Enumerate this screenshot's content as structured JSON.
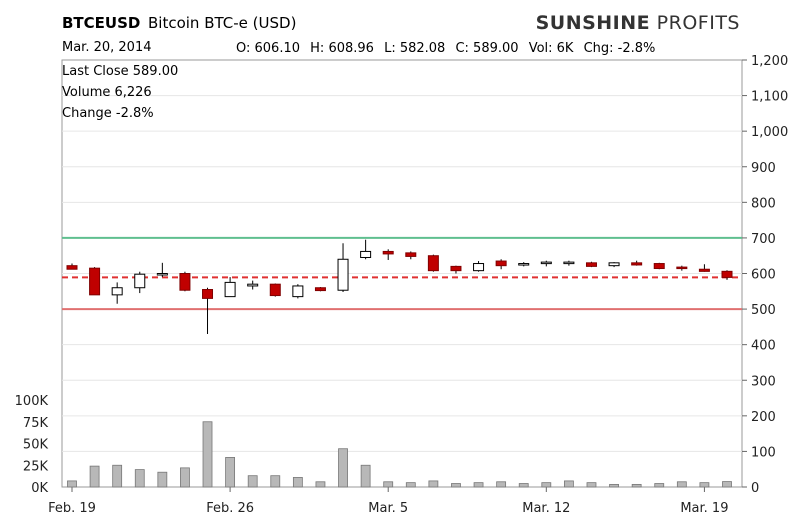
{
  "header": {
    "symbol": "BTCEUSD",
    "name": "Bitcoin  BTC-e  (USD)",
    "brand_bold": "SUNSHINE",
    "brand_light": " PROFITS",
    "date": "Mar. 20, 2014",
    "ohlc": {
      "open": "O: 606.10",
      "high": "H: 608.96",
      "low": "L: 582.08",
      "close": "C: 589.00",
      "vol": "Vol: 6K",
      "chg": "Chg: -2.8%"
    }
  },
  "info": {
    "last_close": "Last Close  589.00",
    "volume": "Volume  6,226",
    "change": "Change  -2.8%"
  },
  "colors": {
    "up_fill": "#ffffff",
    "down_fill": "#c00000",
    "resistance": "#5fbf8f",
    "support": "#e07070",
    "close_line": "#e03030",
    "volume_bar": "#b8b8b8",
    "grid": "#e6e6e6"
  },
  "chart_data": {
    "type": "candlestick",
    "price_axis": {
      "min": 0,
      "max": 1200,
      "ticks": [
        "0",
        "100",
        "200",
        "300",
        "400",
        "500",
        "600",
        "700",
        "800",
        "900",
        "1,000",
        "1,100",
        "1,200"
      ]
    },
    "volume_axis": {
      "min": 0,
      "max": 100000,
      "ticks": [
        "0K",
        "25K",
        "50K",
        "75K",
        "100K"
      ]
    },
    "x_ticks": [
      {
        "label": "Feb. 19",
        "index": 0
      },
      {
        "label": "Feb. 26",
        "index": 7
      },
      {
        "label": "Mar. 5",
        "index": 14
      },
      {
        "label": "Mar. 12",
        "index": 21
      },
      {
        "label": "Mar. 19",
        "index": 28
      }
    ],
    "horizontal_lines": [
      {
        "name": "resistance",
        "value": 700
      },
      {
        "name": "last-close",
        "value": 589,
        "dashed": true
      },
      {
        "name": "support",
        "value": 500
      }
    ],
    "candles": [
      {
        "date": "Feb. 19",
        "open": 622,
        "high": 628,
        "low": 612,
        "close": 612,
        "volume": 7000
      },
      {
        "date": "Feb. 20",
        "open": 615,
        "high": 618,
        "low": 540,
        "close": 540,
        "volume": 24000
      },
      {
        "date": "Feb. 21",
        "open": 540,
        "high": 575,
        "low": 515,
        "close": 560,
        "volume": 25000
      },
      {
        "date": "Feb. 22",
        "open": 560,
        "high": 605,
        "low": 545,
        "close": 598,
        "volume": 20000
      },
      {
        "date": "Feb. 23",
        "open": 598,
        "high": 630,
        "low": 590,
        "close": 600,
        "volume": 17000
      },
      {
        "date": "Feb. 24",
        "open": 600,
        "high": 605,
        "low": 550,
        "close": 553,
        "volume": 22000
      },
      {
        "date": "Feb. 25",
        "open": 555,
        "high": 560,
        "low": 430,
        "close": 530,
        "volume": 75000
      },
      {
        "date": "Feb. 26",
        "open": 535,
        "high": 590,
        "low": 535,
        "close": 575,
        "volume": 34000
      },
      {
        "date": "Feb. 27",
        "open": 565,
        "high": 580,
        "low": 555,
        "close": 570,
        "volume": 13000
      },
      {
        "date": "Feb. 28",
        "open": 570,
        "high": 572,
        "low": 535,
        "close": 538,
        "volume": 13000
      },
      {
        "date": "Mar. 1",
        "open": 535,
        "high": 570,
        "low": 530,
        "close": 565,
        "volume": 11000
      },
      {
        "date": "Mar. 2",
        "open": 560,
        "high": 562,
        "low": 550,
        "close": 552,
        "volume": 6000
      },
      {
        "date": "Mar. 3",
        "open": 553,
        "high": 685,
        "low": 548,
        "close": 640,
        "volume": 44000
      },
      {
        "date": "Mar. 4",
        "open": 645,
        "high": 695,
        "low": 640,
        "close": 662,
        "volume": 25000
      },
      {
        "date": "Mar. 5",
        "open": 662,
        "high": 668,
        "low": 638,
        "close": 655,
        "volume": 6000
      },
      {
        "date": "Mar. 6",
        "open": 658,
        "high": 662,
        "low": 640,
        "close": 648,
        "volume": 5000
      },
      {
        "date": "Mar. 7",
        "open": 650,
        "high": 653,
        "low": 605,
        "close": 608,
        "volume": 7000
      },
      {
        "date": "Mar. 8",
        "open": 620,
        "high": 622,
        "low": 600,
        "close": 608,
        "volume": 4000
      },
      {
        "date": "Mar. 9",
        "open": 608,
        "high": 635,
        "low": 605,
        "close": 628,
        "volume": 5000
      },
      {
        "date": "Mar. 10",
        "open": 635,
        "high": 640,
        "low": 612,
        "close": 622,
        "volume": 6000
      },
      {
        "date": "Mar. 11",
        "open": 625,
        "high": 632,
        "low": 620,
        "close": 628,
        "volume": 4000
      },
      {
        "date": "Mar. 12",
        "open": 628,
        "high": 636,
        "low": 620,
        "close": 632,
        "volume": 5000
      },
      {
        "date": "Mar. 13",
        "open": 630,
        "high": 636,
        "low": 622,
        "close": 632,
        "volume": 7000
      },
      {
        "date": "Mar. 14",
        "open": 630,
        "high": 633,
        "low": 618,
        "close": 620,
        "volume": 5000
      },
      {
        "date": "Mar. 15",
        "open": 622,
        "high": 632,
        "low": 618,
        "close": 630,
        "volume": 3000
      },
      {
        "date": "Mar. 16",
        "open": 630,
        "high": 636,
        "low": 622,
        "close": 624,
        "volume": 3000
      },
      {
        "date": "Mar. 17",
        "open": 628,
        "high": 630,
        "low": 612,
        "close": 614,
        "volume": 4000
      },
      {
        "date": "Mar. 18",
        "open": 618,
        "high": 622,
        "low": 608,
        "close": 614,
        "volume": 6000
      },
      {
        "date": "Mar. 19",
        "open": 612,
        "high": 626,
        "low": 605,
        "close": 606,
        "volume": 5000
      },
      {
        "date": "Mar. 20",
        "open": 606.1,
        "high": 608.96,
        "low": 582.08,
        "close": 589.0,
        "volume": 6226
      }
    ]
  }
}
